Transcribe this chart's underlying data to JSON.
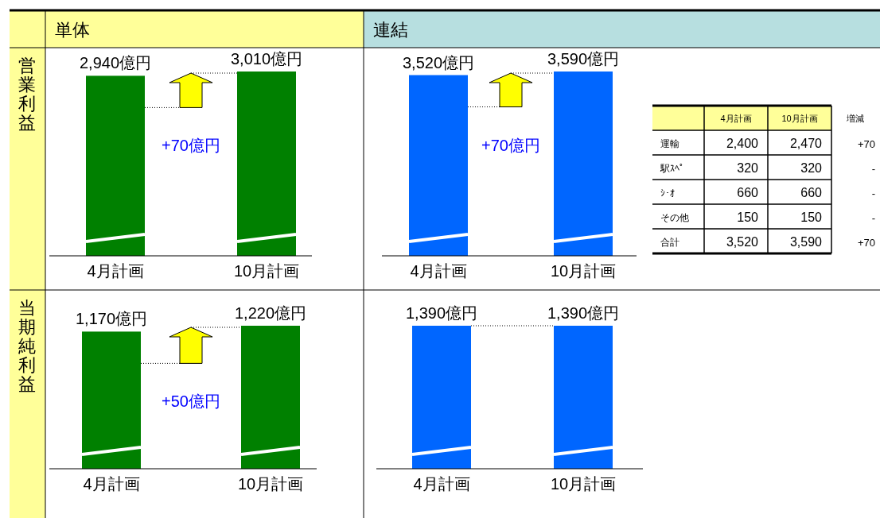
{
  "chart_data": [
    {
      "type": "bar",
      "title": "単体",
      "ylabel": "営業利益",
      "categories": [
        "4月計画",
        "10月計画"
      ],
      "values": [
        2940,
        3010
      ],
      "value_labels": [
        "2,940億円",
        "3,010億円"
      ],
      "color": "#008000",
      "tick_labels": "x",
      "annotations": [
        "+70億円"
      ]
    },
    {
      "type": "bar",
      "title": "連結",
      "categories": [
        "4月計画",
        "10月計画"
      ],
      "values": [
        3520,
        3590
      ],
      "value_labels": [
        "3,520億円",
        "3,590億円"
      ],
      "color": "#0066ff",
      "tick_labels": "x",
      "annotations": [
        "+70億円"
      ]
    },
    {
      "type": "other",
      "categories": [
        "4月計画",
        "10月計画",
        "増減"
      ],
      "y_categories": [
        "運輸",
        "駅ｽﾍﾟ",
        "ｼ･ｵ",
        "その他",
        "合計"
      ],
      "cell_labels": [
        [
          "2,400",
          "2,470",
          "+70"
        ],
        [
          "320",
          "320",
          "-"
        ],
        [
          "660",
          "660",
          "-"
        ],
        [
          "150",
          "150",
          "-"
        ],
        [
          "3,520",
          "3,590",
          "+70"
        ]
      ]
    },
    {
      "type": "bar",
      "ylabel": "当期純利益",
      "categories": [
        "4月計画",
        "10月計画"
      ],
      "values": [
        1170,
        1220
      ],
      "value_labels": [
        "1,170億円",
        "1,220億円"
      ],
      "color": "#008000",
      "tick_labels": "x",
      "annotations": [
        "+50億円"
      ]
    },
    {
      "type": "bar",
      "categories": [
        "4月計画",
        "10月計画"
      ],
      "values": [
        1390,
        1390
      ],
      "value_labels": [
        "1,390億円",
        "1,390億円"
      ],
      "color": "#0066ff",
      "tick_labels": "x"
    }
  ]
}
